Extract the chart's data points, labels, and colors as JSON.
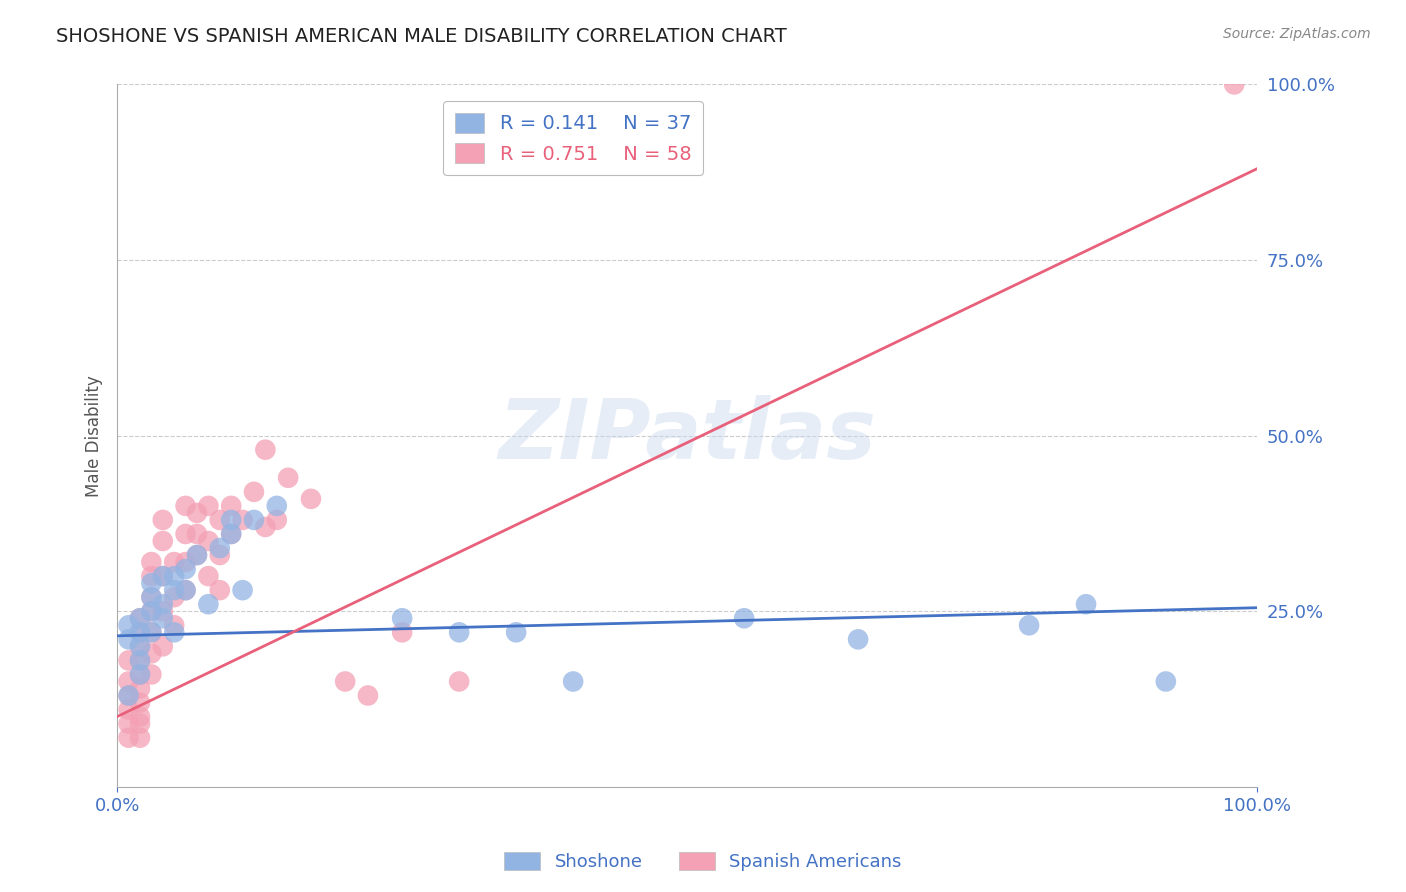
{
  "title": "SHOSHONE VS SPANISH AMERICAN MALE DISABILITY CORRELATION CHART",
  "source_text": "Source: ZipAtlas.com",
  "ylabel": "Male Disability",
  "watermark": "ZIPatlas",
  "xlim": [
    0,
    1
  ],
  "ylim": [
    0,
    1
  ],
  "shoshone_R": 0.141,
  "shoshone_N": 37,
  "spanish_R": 0.751,
  "spanish_N": 58,
  "shoshone_color": "#92b4e3",
  "spanish_color": "#f4a0b5",
  "shoshone_line_color": "#4472C4",
  "spanish_line_color": "#E8607A",
  "title_color": "#222222",
  "axis_label_color": "#555555",
  "tick_color": "#4472C4",
  "grid_color": "#cccccc",
  "background_color": "#ffffff",
  "shoshone_x": [
    0.01,
    0.01,
    0.01,
    0.02,
    0.02,
    0.02,
    0.02,
    0.02,
    0.03,
    0.03,
    0.03,
    0.03,
    0.04,
    0.04,
    0.04,
    0.05,
    0.05,
    0.05,
    0.06,
    0.06,
    0.07,
    0.08,
    0.09,
    0.1,
    0.1,
    0.11,
    0.12,
    0.14,
    0.25,
    0.3,
    0.35,
    0.4,
    0.55,
    0.65,
    0.8,
    0.85,
    0.92
  ],
  "shoshone_y": [
    0.21,
    0.23,
    0.13,
    0.22,
    0.24,
    0.2,
    0.18,
    0.16,
    0.22,
    0.25,
    0.27,
    0.29,
    0.26,
    0.3,
    0.24,
    0.28,
    0.22,
    0.3,
    0.31,
    0.28,
    0.33,
    0.26,
    0.34,
    0.36,
    0.38,
    0.28,
    0.38,
    0.4,
    0.24,
    0.22,
    0.22,
    0.15,
    0.24,
    0.21,
    0.23,
    0.26,
    0.15
  ],
  "spanish_x": [
    0.01,
    0.01,
    0.01,
    0.01,
    0.01,
    0.01,
    0.02,
    0.02,
    0.02,
    0.02,
    0.02,
    0.02,
    0.02,
    0.02,
    0.02,
    0.02,
    0.03,
    0.03,
    0.03,
    0.03,
    0.03,
    0.03,
    0.03,
    0.04,
    0.04,
    0.04,
    0.04,
    0.04,
    0.05,
    0.05,
    0.05,
    0.06,
    0.06,
    0.06,
    0.06,
    0.07,
    0.07,
    0.07,
    0.08,
    0.08,
    0.08,
    0.09,
    0.09,
    0.09,
    0.1,
    0.1,
    0.11,
    0.12,
    0.13,
    0.13,
    0.14,
    0.15,
    0.17,
    0.2,
    0.22,
    0.25,
    0.3,
    0.98
  ],
  "spanish_y": [
    0.07,
    0.09,
    0.11,
    0.13,
    0.15,
    0.18,
    0.1,
    0.12,
    0.14,
    0.16,
    0.18,
    0.2,
    0.22,
    0.24,
    0.07,
    0.09,
    0.16,
    0.19,
    0.22,
    0.25,
    0.27,
    0.3,
    0.32,
    0.2,
    0.25,
    0.3,
    0.35,
    0.38,
    0.23,
    0.27,
    0.32,
    0.28,
    0.32,
    0.36,
    0.4,
    0.33,
    0.36,
    0.39,
    0.3,
    0.35,
    0.4,
    0.28,
    0.33,
    0.38,
    0.36,
    0.4,
    0.38,
    0.42,
    0.37,
    0.48,
    0.38,
    0.44,
    0.41,
    0.15,
    0.13,
    0.22,
    0.15,
    1.0
  ],
  "shoshone_trend_x": [
    0.0,
    1.0
  ],
  "shoshone_trend_y": [
    0.215,
    0.255
  ],
  "spanish_trend_x": [
    0.0,
    1.0
  ],
  "spanish_trend_y": [
    0.1,
    0.88
  ]
}
